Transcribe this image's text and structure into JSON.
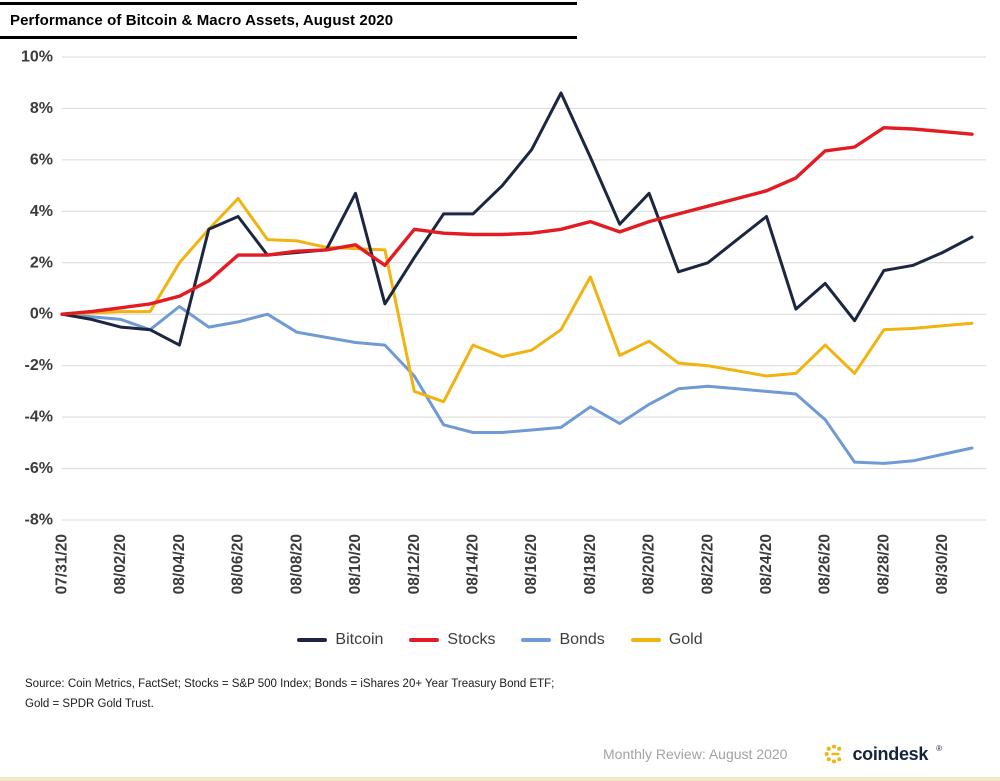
{
  "title": "Performance of Bitcoin & Macro Assets, August 2020",
  "chart_data": {
    "type": "line",
    "x": [
      "07/31/20",
      "08/01/20",
      "08/02/20",
      "08/03/20",
      "08/04/20",
      "08/05/20",
      "08/06/20",
      "08/07/20",
      "08/08/20",
      "08/09/20",
      "08/10/20",
      "08/11/20",
      "08/12/20",
      "08/13/20",
      "08/14/20",
      "08/15/20",
      "08/16/20",
      "08/17/20",
      "08/18/20",
      "08/19/20",
      "08/20/20",
      "08/21/20",
      "08/22/20",
      "08/23/20",
      "08/24/20",
      "08/25/20",
      "08/26/20",
      "08/27/20",
      "08/28/20",
      "08/29/20",
      "08/30/20",
      "08/31/20"
    ],
    "x_tick_every": 2,
    "ylim": [
      -8,
      10
    ],
    "y_tick_step": 2,
    "y_tick_suffix": "%",
    "y_tick_labels": [
      "10%",
      "8%",
      "6%",
      "4%",
      "2%",
      "0%",
      "-2%",
      "-4%",
      "-6%",
      "-8%"
    ],
    "grid": true,
    "legend_position": "bottom",
    "grid_color": "#d9d9d9",
    "axis_text_color": "#3b3b3b",
    "draw_order": [
      2,
      3,
      0,
      1
    ],
    "series": [
      {
        "name": "Bitcoin",
        "color": "#1c2640",
        "stroke_width": 3,
        "values": [
          0.0,
          -0.2,
          -0.5,
          -0.6,
          -1.2,
          3.3,
          3.8,
          2.3,
          2.4,
          2.5,
          4.7,
          0.4,
          2.2,
          3.9,
          3.9,
          5.0,
          6.4,
          8.6,
          6.1,
          3.5,
          4.7,
          1.65,
          2.0,
          2.9,
          3.8,
          0.2,
          1.2,
          -0.25,
          1.7,
          1.9,
          2.4,
          3.0
        ]
      },
      {
        "name": "Stocks",
        "color": "#e31b23",
        "stroke_width": 3.4,
        "values": [
          0.0,
          0.1,
          0.25,
          0.4,
          0.7,
          1.3,
          2.3,
          2.3,
          2.45,
          2.5,
          2.7,
          1.9,
          3.3,
          3.15,
          3.1,
          3.1,
          3.15,
          3.3,
          3.6,
          3.2,
          3.6,
          3.9,
          4.2,
          4.5,
          4.8,
          5.3,
          6.35,
          6.5,
          7.25,
          7.2,
          7.1,
          7.0
        ]
      },
      {
        "name": "Bonds",
        "color": "#6f9ad3",
        "stroke_width": 3,
        "values": [
          0.0,
          -0.1,
          -0.2,
          -0.6,
          0.3,
          -0.5,
          -0.3,
          0.0,
          -0.7,
          -0.9,
          -1.1,
          -1.2,
          -2.4,
          -4.3,
          -4.6,
          -4.6,
          -4.5,
          -4.4,
          -3.6,
          -4.25,
          -3.5,
          -2.9,
          -2.8,
          -2.9,
          -3.0,
          -3.1,
          -4.1,
          -5.75,
          -5.8,
          -5.7,
          -5.45,
          -5.2
        ]
      },
      {
        "name": "Gold",
        "color": "#f0b310",
        "stroke_width": 3,
        "values": [
          0.0,
          0.05,
          0.1,
          0.1,
          2.0,
          3.3,
          4.5,
          2.9,
          2.85,
          2.6,
          2.55,
          2.5,
          -3.0,
          -3.4,
          -1.2,
          -1.65,
          -1.4,
          -0.6,
          1.45,
          -1.6,
          -1.05,
          -1.9,
          -2.0,
          -2.2,
          -2.4,
          -2.3,
          -1.2,
          -2.3,
          -0.6,
          -0.55,
          -0.45,
          -0.35
        ]
      }
    ]
  },
  "source": {
    "line1": "Source: Coin Metrics, FactSet; Stocks = S&P 500 Index; Bonds = iShares 20+ Year Treasury Bond ETF;",
    "line2": "Gold = SPDR Gold Trust."
  },
  "footer": {
    "review_label": "Monthly Review: August 2020",
    "brand": "coindesk",
    "brand_mark": "®"
  },
  "colors": {
    "brand_yellow": "#f0b310",
    "brand_navy": "#16233f"
  }
}
